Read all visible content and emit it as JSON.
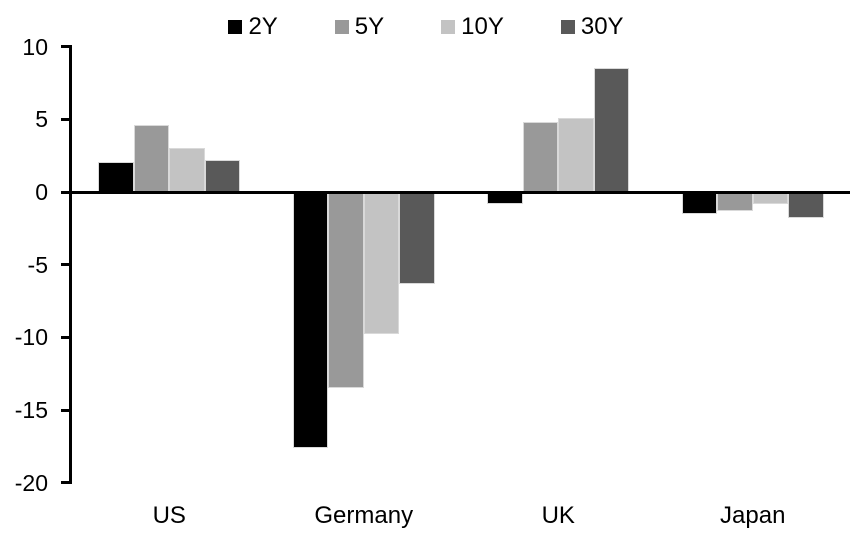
{
  "chart_data": {
    "type": "bar",
    "title": "",
    "xlabel": "",
    "ylabel": "",
    "categories": [
      "US",
      "Germany",
      "UK",
      "Japan"
    ],
    "series": [
      {
        "name": "2Y",
        "color": "#000000",
        "values": [
          2.1,
          -17.6,
          -0.8,
          -1.5
        ]
      },
      {
        "name": "5Y",
        "color": "#999999",
        "values": [
          4.6,
          -13.5,
          4.8,
          -1.3
        ]
      },
      {
        "name": "10Y",
        "color": "#c3c3c3",
        "values": [
          3.0,
          -9.8,
          5.1,
          -0.8
        ]
      },
      {
        "name": "30Y",
        "color": "#595959",
        "values": [
          2.2,
          -6.3,
          8.5,
          -1.8
        ]
      }
    ],
    "ylim": [
      -20,
      10
    ],
    "yticks": [
      10,
      5,
      0,
      -5,
      -10,
      -15,
      -20
    ],
    "grid": false,
    "legend_position": "top",
    "axis_color": "#000000",
    "background_color": "#ffffff"
  }
}
